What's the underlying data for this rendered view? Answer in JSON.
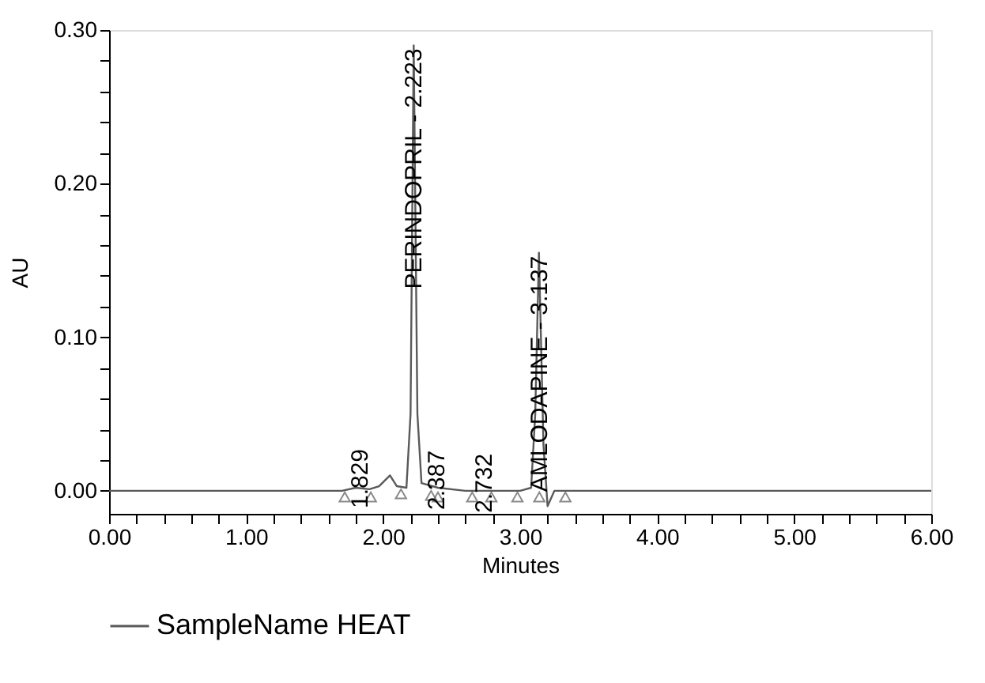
{
  "chart_data": {
    "type": "line",
    "xlabel": "Minutes",
    "ylabel": "AU",
    "xlim": [
      0,
      6
    ],
    "ylim": [
      -0.015,
      0.3
    ],
    "xticks": [
      {
        "value": 0,
        "label": "0.00"
      },
      {
        "value": 0.2,
        "label": null
      },
      {
        "value": 0.4,
        "label": null
      },
      {
        "value": 0.6,
        "label": null
      },
      {
        "value": 0.8,
        "label": null
      },
      {
        "value": 1,
        "label": "1.00"
      },
      {
        "value": 1.2,
        "label": null
      },
      {
        "value": 1.4,
        "label": null
      },
      {
        "value": 1.6,
        "label": null
      },
      {
        "value": 1.8,
        "label": null
      },
      {
        "value": 2,
        "label": "2.00"
      },
      {
        "value": 2.2,
        "label": null
      },
      {
        "value": 2.4,
        "label": null
      },
      {
        "value": 2.6,
        "label": null
      },
      {
        "value": 2.8,
        "label": null
      },
      {
        "value": 3,
        "label": "3.00"
      },
      {
        "value": 3.2,
        "label": null
      },
      {
        "value": 3.4,
        "label": null
      },
      {
        "value": 3.6,
        "label": null
      },
      {
        "value": 3.8,
        "label": null
      },
      {
        "value": 4,
        "label": "4.00"
      },
      {
        "value": 4.2,
        "label": null
      },
      {
        "value": 4.4,
        "label": null
      },
      {
        "value": 4.6,
        "label": null
      },
      {
        "value": 4.8,
        "label": null
      },
      {
        "value": 5,
        "label": "5.00"
      },
      {
        "value": 5.2,
        "label": null
      },
      {
        "value": 5.4,
        "label": null
      },
      {
        "value": 5.6,
        "label": null
      },
      {
        "value": 5.8,
        "label": null
      },
      {
        "value": 6,
        "label": "6.00"
      }
    ],
    "yticks": [
      {
        "value": 0,
        "label": "0.00"
      },
      {
        "value": 0.02,
        "label": null
      },
      {
        "value": 0.04,
        "label": null
      },
      {
        "value": 0.06,
        "label": null
      },
      {
        "value": 0.08,
        "label": null
      },
      {
        "value": 0.1,
        "label": "0.10"
      },
      {
        "value": 0.12,
        "label": null
      },
      {
        "value": 0.14,
        "label": null
      },
      {
        "value": 0.16,
        "label": null
      },
      {
        "value": 0.18,
        "label": null
      },
      {
        "value": 0.2,
        "label": "0.20"
      },
      {
        "value": 0.22,
        "label": null
      },
      {
        "value": 0.24,
        "label": null
      },
      {
        "value": 0.26,
        "label": null
      },
      {
        "value": 0.28,
        "label": null
      },
      {
        "value": 0.3,
        "label": "0.30"
      }
    ],
    "grid": false,
    "legend": "bottom",
    "series": [
      {
        "name": "SampleName HEAT",
        "color": "#5a5a5a",
        "marker": "none",
        "line_style": "solid",
        "x": [
          0,
          0.5,
          1.0,
          1.5,
          1.7,
          1.8,
          1.9,
          1.97,
          2.05,
          2.1,
          2.17,
          2.2,
          2.223,
          2.25,
          2.28,
          2.4,
          2.6,
          3.0,
          3.08,
          3.11,
          3.137,
          3.17,
          3.2,
          3.25,
          3.35,
          4.0,
          5.0,
          6.0
        ],
        "values": [
          0,
          0,
          0,
          0,
          0,
          0.002,
          0.001,
          0.003,
          0.01,
          0.003,
          0.002,
          0.05,
          0.29,
          0.05,
          0.005,
          0.002,
          0,
          0,
          0.002,
          0.05,
          0.155,
          0.03,
          -0.01,
          0,
          0,
          0,
          0,
          0
        ]
      },
      {
        "type": "scatter",
        "color": "#5a5a5a",
        "marker": "triangle",
        "x": [
          1.72,
          1.91,
          2.13,
          2.35,
          2.4,
          2.65,
          2.79,
          2.98,
          3.14,
          3.33
        ],
        "values": [
          -0.004,
          -0.004,
          -0.002,
          -0.003,
          -0.004,
          -0.004,
          -0.004,
          -0.004,
          -0.004,
          -0.004
        ]
      }
    ],
    "annotations": [
      {
        "text": "1.829",
        "x": 1.829,
        "y": 0.003
      },
      {
        "text": "PERINDOPRIL - 2.223",
        "x": 2.223,
        "y": 0.29
      },
      {
        "text": "2.387",
        "x": 2.387,
        "y": 0.002
      },
      {
        "text": "2.732",
        "x": 2.732,
        "y": 0.0
      },
      {
        "text": "AMLODAPINE - 3.137",
        "x": 3.137,
        "y": 0.155
      }
    ]
  }
}
